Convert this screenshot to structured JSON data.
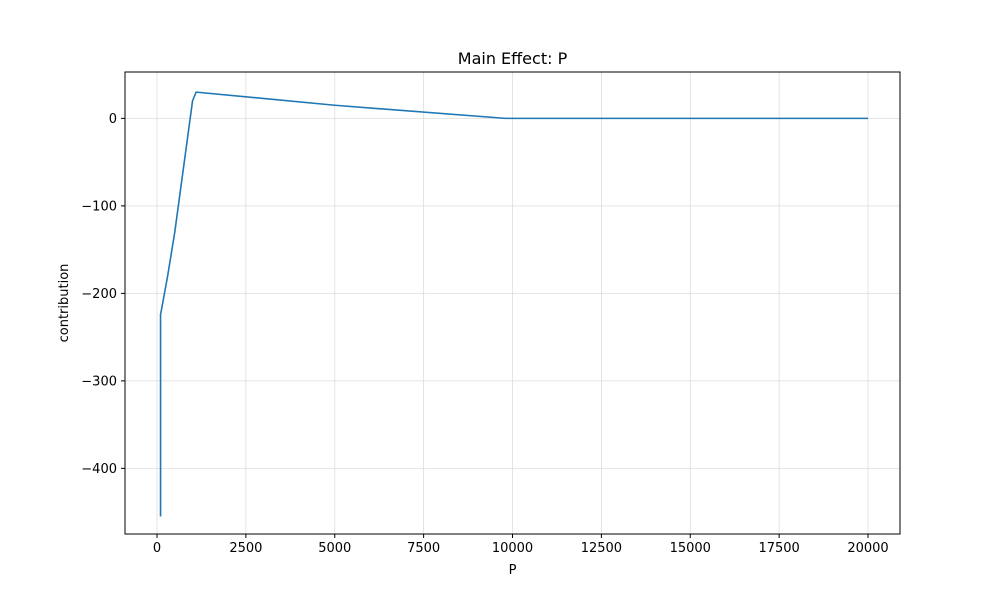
{
  "chart_data": {
    "type": "line",
    "title": "Main Effect: P",
    "xlabel": "P",
    "ylabel": "contribution",
    "xlim": [
      -900,
      20900
    ],
    "ylim": [
      -475,
      53
    ],
    "xticks": [
      0,
      2500,
      5000,
      7500,
      10000,
      12500,
      15000,
      17500,
      20000
    ],
    "xtick_labels": [
      "0",
      "2500",
      "5000",
      "7500",
      "10000",
      "12500",
      "15000",
      "17500",
      "20000"
    ],
    "yticks": [
      -400,
      -300,
      -200,
      -100,
      0
    ],
    "ytick_labels": [
      "−400",
      "−300",
      "−200",
      "−100",
      "0"
    ],
    "grid": true,
    "series": [
      {
        "color": "#1f77b4",
        "x": [
          100,
          100,
          120,
          300,
          500,
          700,
          900,
          1000,
          1100,
          5000,
          9800,
          10000,
          15000,
          20000
        ],
        "y": [
          -455,
          -224,
          -220,
          -180,
          -130,
          -70,
          -10,
          20,
          30,
          15,
          0,
          0,
          0,
          0
        ]
      }
    ]
  }
}
